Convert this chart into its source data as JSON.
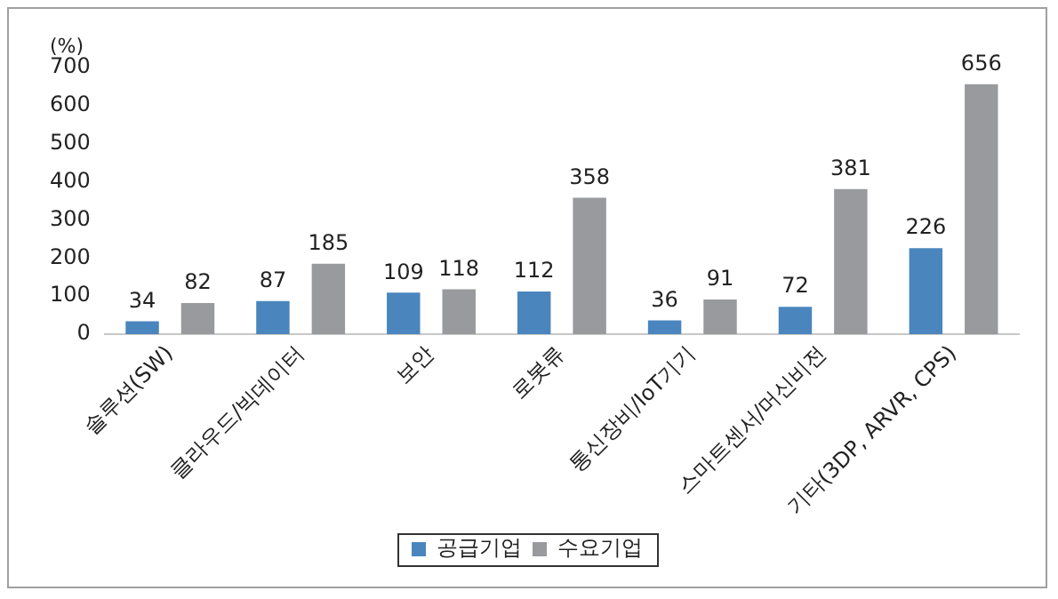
{
  "chart_data": {
    "type": "bar",
    "ylabel": "(%)",
    "categories": [
      "솔루션(SW)",
      "클라우드/빅데이터",
      "보안",
      "로봇류",
      "통신장비/IoT기기",
      "스마트센서/머신비전",
      "기타(3DP, ARVR, CPS)"
    ],
    "series": [
      {
        "name": "공급기업",
        "color": "#4a86bd",
        "values": [
          34,
          87,
          109,
          112,
          36,
          72,
          226
        ]
      },
      {
        "name": "수요기업",
        "color": "#989a9d",
        "values": [
          82,
          185,
          118,
          358,
          91,
          381,
          656
        ]
      }
    ],
    "ylim": [
      0,
      700
    ],
    "yticks": [
      0,
      100,
      200,
      300,
      400,
      500,
      600,
      700
    ],
    "grid": false,
    "legend": "bottom",
    "data_labels": true
  }
}
